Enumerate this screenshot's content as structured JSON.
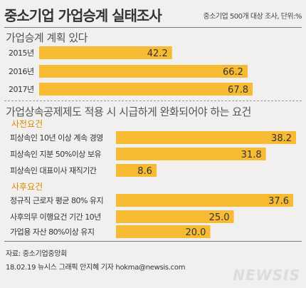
{
  "header": {
    "title": "중소기업 가업승계 실태조사",
    "subtitle": "중소기업 500개 대상 조사, 단위:%"
  },
  "colors": {
    "bar": "#f6ba33",
    "bar_text": "#333333",
    "label_text": "#333333",
    "group_label": "#d98b00"
  },
  "chart_data": [
    {
      "type": "bar",
      "orientation": "horizontal",
      "title": "가업승계 계획 있다",
      "categories": [
        "2015년",
        "2016년",
        "2017년"
      ],
      "values": [
        42.2,
        66.2,
        67.8
      ],
      "value_labels": [
        "42.2",
        "66.2",
        "67.8"
      ]
    },
    {
      "type": "bar",
      "orientation": "horizontal",
      "title": "가업상속공제제도 적용 시 시급하게 완화되어야 하는 요건",
      "groups": [
        {
          "name": "사전요건",
          "categories": [
            "피상속인 10년 이상 계속 경영",
            "피상속인 지분 50%이상 보유",
            "피상속인 대표이사 재직기간"
          ],
          "values": [
            38.2,
            31.8,
            8.6
          ],
          "value_labels": [
            "38.2",
            "31.8",
            "8.6"
          ]
        },
        {
          "name": "사후요건",
          "categories": [
            "정규직 근로자 평균 80% 유지",
            "사후의무 이행요건 기간 10년",
            "가업용 자산 80%이상 유지"
          ],
          "values": [
            37.6,
            25.0,
            20.0
          ],
          "value_labels": [
            "37.6",
            "25.0",
            "20.0"
          ]
        }
      ]
    }
  ],
  "footer": {
    "source": "자료: 중소기업중앙회",
    "credit": "18.02.19 뉴시스 그래픽 안지혜 기자 hokma@newsis.com",
    "logo": "NEWSIS"
  }
}
